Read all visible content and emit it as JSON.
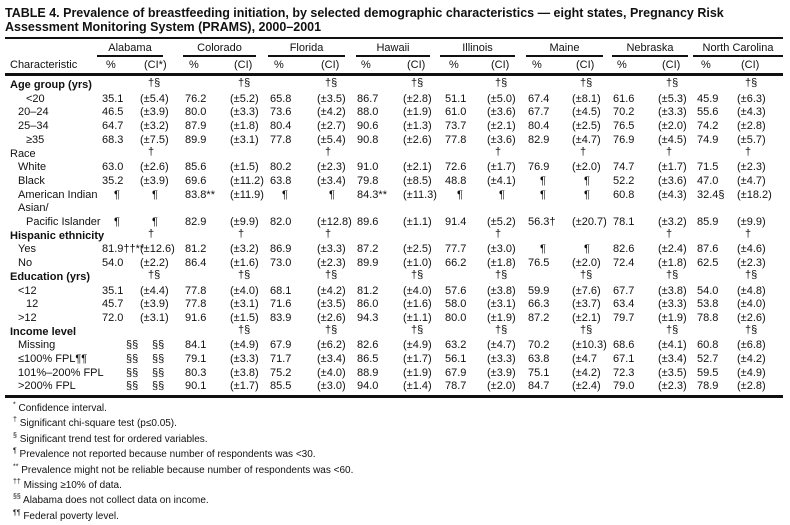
{
  "title": "TABLE 4. Prevalence of breastfeeding initiation, by selected demographic characteristics — eight states, Pregnancy Risk Assessment Monitoring System (PRAMS), 2000–2001",
  "columns": {
    "characteristic": "Characteristic",
    "pct": "%",
    "ci_first": "(CI*)",
    "ci": "(CI)"
  },
  "states": [
    "Alabama",
    "Colorado",
    "Florida",
    "Hawaii",
    "Illinois",
    "Maine",
    "Nebraska",
    "North Carolina"
  ],
  "rows": [
    {
      "type": "group",
      "label": "Age group (yrs)",
      "sig": [
        "†§",
        "†§",
        "†§",
        "†§",
        "†§",
        "†§",
        "†§",
        "†§"
      ]
    },
    {
      "label": "<20",
      "indent": 2,
      "cells": [
        "35.1",
        "(±5.4)",
        "76.2",
        "(±5.2)",
        "65.8",
        "(±3.5)",
        "86.7",
        "(±2.8)",
        "51.1",
        "(±5.0)",
        "67.4",
        "(±8.1)",
        "61.6",
        "(±5.3)",
        "45.9",
        "(±6.3)"
      ]
    },
    {
      "label": "20–24",
      "indent": 1,
      "cells": [
        "46.5",
        "(±3.9)",
        "80.0",
        "(±3.3)",
        "73.6",
        "(±4.2)",
        "88.0",
        "(±1.9)",
        "61.0",
        "(±3.6)",
        "67.7",
        "(±4.5)",
        "70.2",
        "(±3.3)",
        "55.6",
        "(±4.3)"
      ]
    },
    {
      "label": "25–34",
      "indent": 1,
      "cells": [
        "64.7",
        "(±3.2)",
        "87.9",
        "(±1.8)",
        "80.4",
        "(±2.7)",
        "90.6",
        "(±1.3)",
        "73.7",
        "(±2.1)",
        "80.4",
        "(±2.5)",
        "76.5",
        "(±2.0)",
        "74.2",
        "(±2.8)"
      ]
    },
    {
      "label": "≥35",
      "indent": 2,
      "cells": [
        "68.3",
        "(±7.5)",
        "89.9",
        "(±3.1)",
        "77.8",
        "(±5.4)",
        "90.8",
        "(±2.6)",
        "77.8",
        "(±3.6)",
        "82.9",
        "(±4.7)",
        "76.9",
        "(±4.5)",
        "74.9",
        "(±5.7)"
      ]
    },
    {
      "type": "group",
      "label": "Race",
      "plain": true,
      "sig": [
        "†",
        "",
        "†",
        "",
        "†",
        "†",
        "†",
        "†"
      ]
    },
    {
      "label": "White",
      "indent": 1,
      "cells": [
        "63.0",
        "(±2.6)",
        "85.6",
        "(±1.5)",
        "80.2",
        "(±2.3)",
        "91.0",
        "(±2.1)",
        "72.6",
        "(±1.7)",
        "76.9",
        "(±2.0)",
        "74.7",
        "(±1.7)",
        "71.5",
        "(±2.3)"
      ]
    },
    {
      "label": "Black",
      "indent": 1,
      "cells": [
        "35.2",
        "(±3.9)",
        "69.6",
        "(±11.2)",
        "63.8",
        "(±3.4)",
        "79.8",
        "(±8.5)",
        "48.8",
        "(±4.1)",
        "¶",
        "¶",
        "52.2",
        "(±3.6)",
        "47.0",
        "(±4.7)"
      ]
    },
    {
      "label": "American Indian",
      "indent": 1,
      "cells": [
        "¶",
        "¶",
        "83.8**",
        "(±11.9)",
        "¶",
        "¶",
        "84.3**",
        "(±11.3)",
        "¶",
        "¶",
        "¶",
        "¶",
        "60.8",
        "(±4.3)",
        "32.4§",
        "(±18.2)"
      ]
    },
    {
      "label": "Asian/",
      "indent": 1,
      "cells": []
    },
    {
      "label": "Pacific Islander",
      "indent": 2,
      "cells": [
        "¶",
        "¶",
        "82.9",
        "(±9.9)",
        "82.0",
        "(±12.8)",
        "89.6",
        "(±1.1)",
        "91.4",
        "(±5.2)",
        "56.3†",
        "(±20.7)",
        "78.1",
        "(±3.2)",
        "85.9",
        "(±9.9)"
      ]
    },
    {
      "type": "group",
      "label": "Hispanic ethnicity",
      "sig": [
        "†",
        "†",
        "†",
        "",
        "†",
        "",
        "†",
        "†"
      ]
    },
    {
      "label": "Yes",
      "indent": 1,
      "cells": [
        "81.9††**",
        "(±12.6)",
        "81.2",
        "(±3.2)",
        "86.9",
        "(±3.3)",
        "87.2",
        "(±2.5)",
        "77.7",
        "(±3.0)",
        "¶",
        "¶",
        "82.6",
        "(±2.4)",
        "87.6",
        "(±4.6)"
      ]
    },
    {
      "label": "No",
      "indent": 1,
      "cells": [
        "54.0",
        "(±2.2)",
        "86.4",
        "(±1.6)",
        "73.0",
        "(±2.3)",
        "89.9",
        "(±1.0)",
        "66.2",
        "(±1.8)",
        "76.5",
        "(±2.0)",
        "72.4",
        "(±1.8)",
        "62.5",
        "(±2.3)"
      ]
    },
    {
      "type": "group",
      "label": "Education (yrs)",
      "sig": [
        "†§",
        "†§",
        "†§",
        "†§",
        "†§",
        "†§",
        "†§",
        "†§"
      ]
    },
    {
      "label": "<12",
      "indent": 1,
      "cells": [
        "35.1",
        "(±4.4)",
        "77.8",
        "(±4.0)",
        "68.1",
        "(±4.2)",
        "81.2",
        "(±4.0)",
        "57.6",
        "(±3.8)",
        "59.9",
        "(±7.6)",
        "67.7",
        "(±3.8)",
        "54.0",
        "(±4.8)"
      ]
    },
    {
      "label": "12",
      "indent": 2,
      "cells": [
        "45.7",
        "(±3.9)",
        "77.8",
        "(±3.1)",
        "71.6",
        "(±3.5)",
        "86.0",
        "(±1.6)",
        "58.0",
        "(±3.1)",
        "66.3",
        "(±3.7)",
        "63.4",
        "(±3.3)",
        "53.8",
        "(±4.0)"
      ]
    },
    {
      "label": ">12",
      "indent": 1,
      "cells": [
        "72.0",
        "(±3.1)",
        "91.6",
        "(±1.5)",
        "83.9",
        "(±2.6)",
        "94.3",
        "(±1.1)",
        "80.0",
        "(±1.9)",
        "87.2",
        "(±2.1)",
        "79.7",
        "(±1.9)",
        "78.8",
        "(±2.6)"
      ]
    },
    {
      "type": "group",
      "label": "Income level",
      "sig": [
        "",
        "†§",
        "†§",
        "†§",
        "†§",
        "†§",
        "†§",
        "†§"
      ]
    },
    {
      "label": "Missing",
      "indent": 1,
      "cells": [
        "§§",
        "§§",
        "84.1",
        "(±4.9)",
        "67.9",
        "(±6.2)",
        "82.6",
        "(±4.9)",
        "63.2",
        "(±4.7)",
        "70.2",
        "(±10.3)",
        "68.6",
        "(±4.1)",
        "60.8",
        "(±6.8)"
      ]
    },
    {
      "label": "≤100% FPL¶¶",
      "indent": 1,
      "cells": [
        "§§",
        "§§",
        "79.1",
        "(±3.3)",
        "71.7",
        "(±3.4)",
        "86.5",
        "(±1.7)",
        "56.1",
        "(±3.3)",
        "63.8",
        "(±4.7",
        "67.1",
        "(±3.4)",
        "52.7",
        "(±4.2)"
      ]
    },
    {
      "label": "101%–200% FPL",
      "indent": 1,
      "cells": [
        "§§",
        "§§",
        "80.3",
        "(±3.8)",
        "75.2",
        "(±4.0)",
        "88.9",
        "(±1.9)",
        "67.9",
        "(±3.9)",
        "75.1",
        "(±4.2)",
        "72.3",
        "(±3.5)",
        "59.5",
        "(±4.9)"
      ]
    },
    {
      "label": ">200% FPL",
      "indent": 1,
      "cells": [
        "§§",
        "§§",
        "90.1",
        "(±1.7)",
        "85.5",
        "(±3.0)",
        "94.0",
        "(±1.4)",
        "78.7",
        "(±2.0)",
        "84.7",
        "(±2.4)",
        "79.0",
        "(±2.3)",
        "78.9",
        "(±2.8)"
      ]
    }
  ],
  "footnotes": [
    {
      "mark": "*",
      "text": "Confidence interval."
    },
    {
      "mark": "†",
      "text": "Significant chi-square test (p≤0.05)."
    },
    {
      "mark": "§",
      "text": "Significant trend test for ordered variables."
    },
    {
      "mark": "¶",
      "text": "Prevalence not reported because number of respondents was <30."
    },
    {
      "mark": "**",
      "text": "Prevalence might not be reliable because number of respondents was <60."
    },
    {
      "mark": "††",
      "text": "Missing ≥10% of data."
    },
    {
      "mark": "§§",
      "text": "Alabama does not collect data on income."
    },
    {
      "mark": "¶¶",
      "text": "Federal poverty level."
    }
  ]
}
